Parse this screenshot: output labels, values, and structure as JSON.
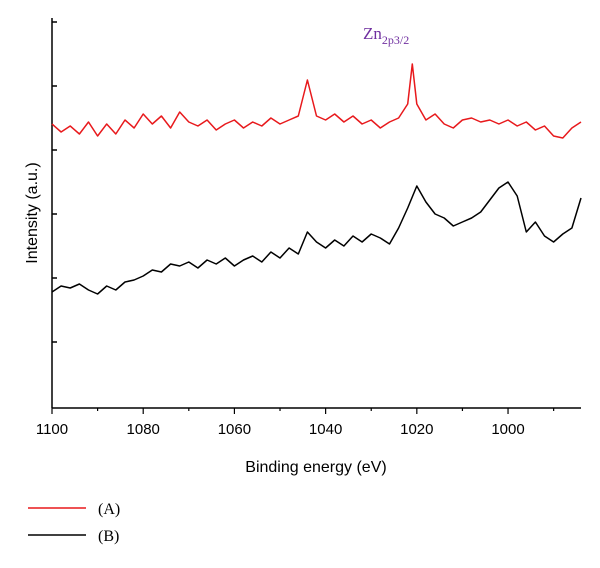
{
  "chart_data": {
    "type": "line",
    "xlabel": "Binding energy (eV)",
    "ylabel": "Intensity (a.u.)",
    "xlim": [
      1100,
      984
    ],
    "x_reversed": true,
    "x_ticks": [
      1100,
      1080,
      1060,
      1040,
      1020,
      1000
    ],
    "x_tick_labels": [
      "1100",
      "1080",
      "1060",
      "1040",
      "1020",
      "1000"
    ],
    "y_tick_labels_shown": false,
    "grid": false,
    "legend_position": "bottom-left",
    "annotation": {
      "text": "Zn",
      "subscript": "2p3/2",
      "color": "#7030a0",
      "x": 1021
    },
    "series": [
      {
        "name": "(A)",
        "color": "#e8191c",
        "x": [
          1100,
          1098,
          1096,
          1094,
          1092,
          1090,
          1088,
          1086,
          1084,
          1082,
          1080,
          1078,
          1076,
          1074,
          1072,
          1070,
          1068,
          1066,
          1064,
          1062,
          1060,
          1058,
          1056,
          1054,
          1052,
          1050,
          1048,
          1046,
          1044,
          1042,
          1040,
          1038,
          1036,
          1034,
          1032,
          1030,
          1028,
          1026,
          1024,
          1022,
          1021,
          1020,
          1018,
          1016,
          1014,
          1012,
          1010,
          1008,
          1006,
          1004,
          1002,
          1000,
          998,
          996,
          994,
          992,
          990,
          988,
          986,
          984
        ],
        "values": [
          0.78,
          0.74,
          0.77,
          0.73,
          0.79,
          0.72,
          0.78,
          0.73,
          0.8,
          0.76,
          0.83,
          0.78,
          0.82,
          0.76,
          0.84,
          0.79,
          0.77,
          0.8,
          0.75,
          0.78,
          0.8,
          0.76,
          0.79,
          0.77,
          0.81,
          0.78,
          0.8,
          0.82,
          1.0,
          0.82,
          0.8,
          0.83,
          0.79,
          0.82,
          0.78,
          0.8,
          0.76,
          0.79,
          0.81,
          0.88,
          1.08,
          0.88,
          0.8,
          0.83,
          0.78,
          0.76,
          0.8,
          0.81,
          0.79,
          0.8,
          0.78,
          0.8,
          0.77,
          0.79,
          0.75,
          0.77,
          0.72,
          0.71,
          0.76,
          0.79
        ]
      },
      {
        "name": "(B)",
        "color": "#000000",
        "x": [
          1100,
          1098,
          1096,
          1094,
          1092,
          1090,
          1088,
          1086,
          1084,
          1082,
          1080,
          1078,
          1076,
          1074,
          1072,
          1070,
          1068,
          1066,
          1064,
          1062,
          1060,
          1058,
          1056,
          1054,
          1052,
          1050,
          1048,
          1046,
          1044,
          1042,
          1040,
          1038,
          1036,
          1034,
          1032,
          1030,
          1028,
          1026,
          1024,
          1022,
          1020,
          1018,
          1016,
          1014,
          1012,
          1010,
          1008,
          1006,
          1004,
          1002,
          1000,
          998,
          996,
          994,
          992,
          990,
          988,
          986,
          984
        ],
        "values": [
          -0.06,
          -0.03,
          -0.04,
          -0.02,
          -0.05,
          -0.07,
          -0.03,
          -0.05,
          -0.01,
          0.0,
          0.02,
          0.05,
          0.04,
          0.08,
          0.07,
          0.09,
          0.06,
          0.1,
          0.08,
          0.11,
          0.07,
          0.1,
          0.12,
          0.09,
          0.14,
          0.11,
          0.16,
          0.13,
          0.24,
          0.19,
          0.16,
          0.2,
          0.17,
          0.22,
          0.19,
          0.23,
          0.21,
          0.18,
          0.26,
          0.36,
          0.47,
          0.39,
          0.33,
          0.31,
          0.27,
          0.29,
          0.31,
          0.34,
          0.4,
          0.46,
          0.49,
          0.42,
          0.24,
          0.29,
          0.22,
          0.19,
          0.23,
          0.26,
          0.41
        ]
      }
    ]
  },
  "legend": [
    {
      "label": "(A)",
      "color": "#e8191c"
    },
    {
      "label": "(B)",
      "color": "#000000"
    }
  ]
}
